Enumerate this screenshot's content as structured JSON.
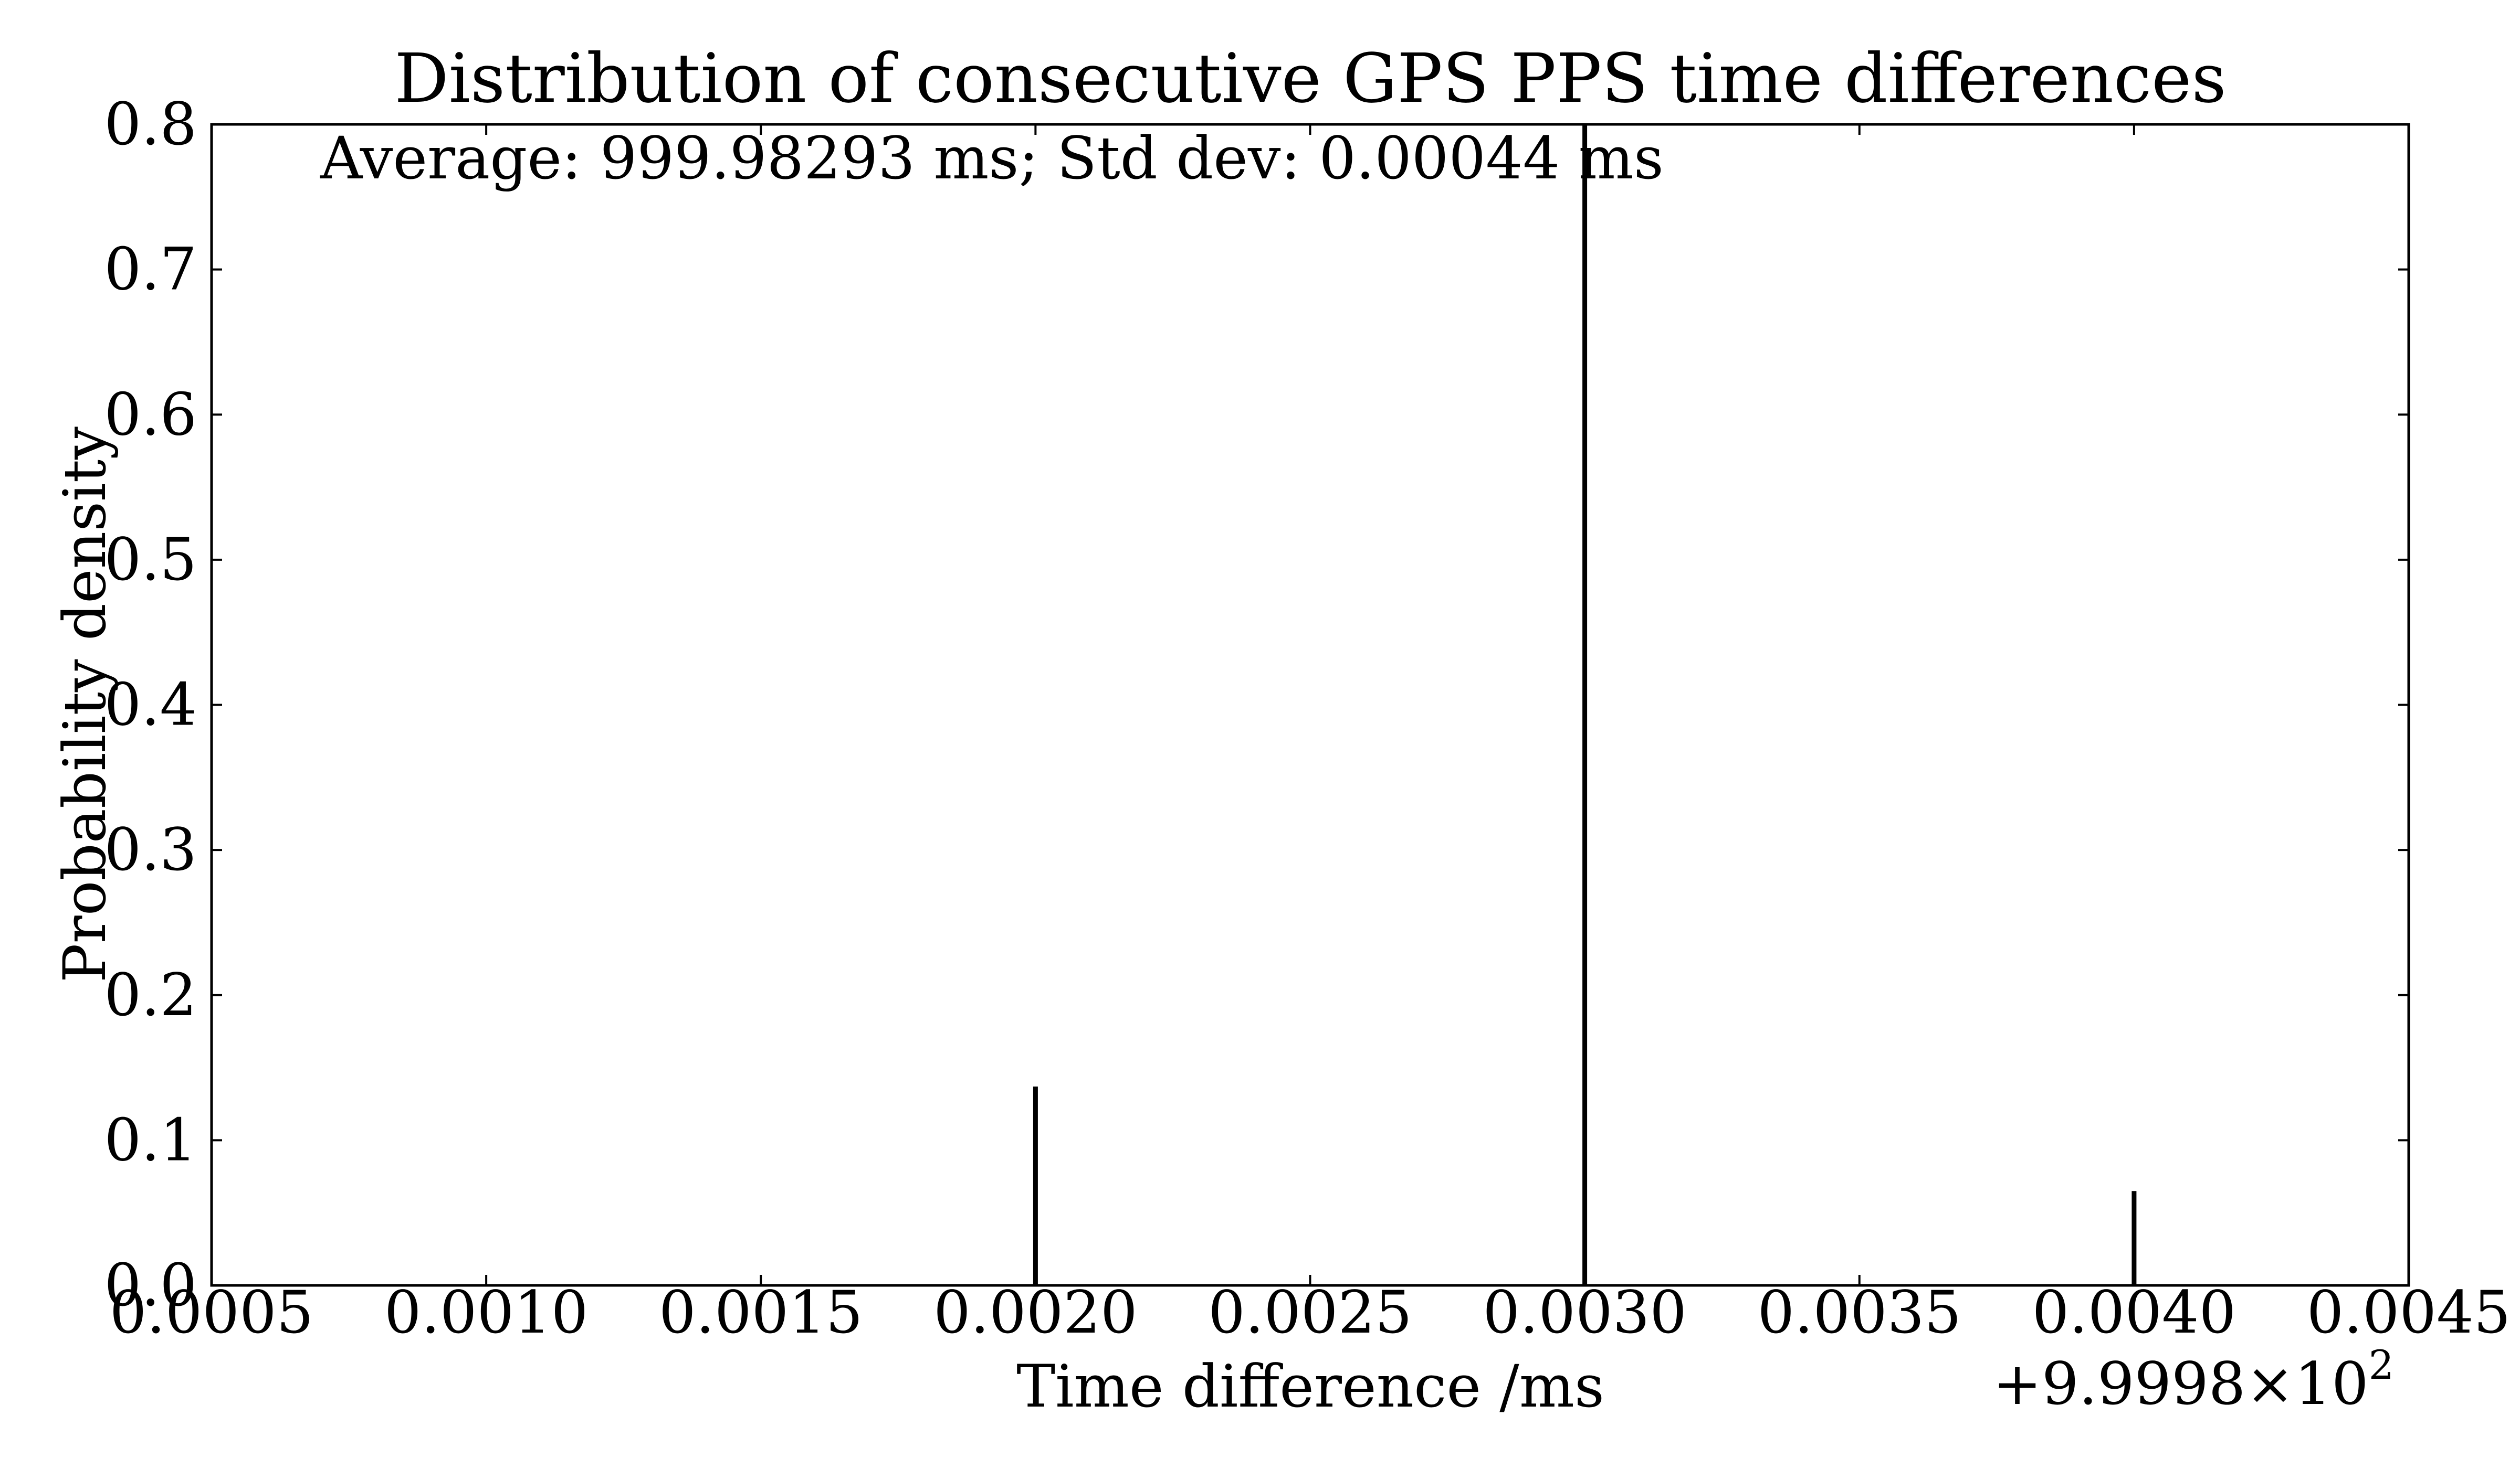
{
  "chart_data": {
    "type": "bar",
    "title": "Distribution of consecutive GPS PPS time differences",
    "xlabel": "Time difference /ms",
    "ylabel": "Probability density",
    "annotation": "Average: 999.98293 ms; Std dev: 0.00044 ms",
    "x_offset_label": "+9.9998×10",
    "x_offset_exponent": "2",
    "xlim": [
      0.0005,
      0.0045
    ],
    "ylim": [
      0.0,
      0.8
    ],
    "xticks": [
      {
        "value": 0.0005,
        "label": "0.0005"
      },
      {
        "value": 0.001,
        "label": "0.0010"
      },
      {
        "value": 0.0015,
        "label": "0.0015"
      },
      {
        "value": 0.002,
        "label": "0.0020"
      },
      {
        "value": 0.0025,
        "label": "0.0025"
      },
      {
        "value": 0.003,
        "label": "0.0030"
      },
      {
        "value": 0.0035,
        "label": "0.0035"
      },
      {
        "value": 0.004,
        "label": "0.0040"
      },
      {
        "value": 0.0045,
        "label": "0.0045"
      }
    ],
    "yticks": [
      {
        "value": 0.0,
        "label": "0.0"
      },
      {
        "value": 0.1,
        "label": "0.1"
      },
      {
        "value": 0.2,
        "label": "0.2"
      },
      {
        "value": 0.3,
        "label": "0.3"
      },
      {
        "value": 0.4,
        "label": "0.4"
      },
      {
        "value": 0.5,
        "label": "0.5"
      },
      {
        "value": 0.6,
        "label": "0.6"
      },
      {
        "value": 0.7,
        "label": "0.7"
      },
      {
        "value": 0.8,
        "label": "0.8"
      }
    ],
    "grid": false,
    "bars": [
      {
        "x": 0.002,
        "y": 0.137
      },
      {
        "x": 0.003,
        "y": 0.8
      },
      {
        "x": 0.004,
        "y": 0.065
      }
    ],
    "bar_color": "#000000"
  }
}
